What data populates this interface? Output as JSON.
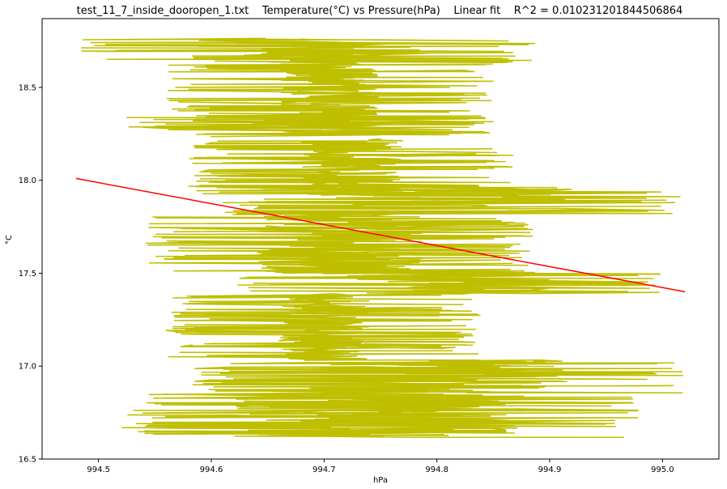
{
  "chart_data": {
    "type": "line",
    "title": "test_11_7_inside_dooropen_1.txt    Temperature(°C) vs Pressure(hPa)    Linear fit    R^2 = 0.010231201844506864",
    "xlabel": "hPa",
    "ylabel": "°C",
    "xlim": [
      994.45,
      995.05
    ],
    "ylim": [
      16.5,
      18.87
    ],
    "xticks": [
      994.5,
      994.6,
      994.7,
      994.8,
      994.9,
      995.0
    ],
    "xtick_labels": [
      "994.5",
      "994.6",
      "994.7",
      "994.8",
      "994.9",
      "995.0"
    ],
    "yticks": [
      16.5,
      17.0,
      17.5,
      18.0,
      18.5
    ],
    "ytick_labels": [
      "16.5",
      "17.0",
      "17.5",
      "18.0",
      "18.5"
    ],
    "grid": false,
    "legend": "none",
    "series": [
      {
        "color": "#bfbf00",
        "bands": [
          {
            "y": [
              18.63,
              18.76
            ],
            "x": [
              994.48,
              994.89
            ]
          },
          {
            "y": [
              18.24,
              18.63
            ],
            "x": [
              994.56,
              994.85
            ]
          },
          {
            "y": [
              18.28,
              18.34
            ],
            "x": [
              994.52,
              994.86
            ]
          },
          {
            "y": [
              17.92,
              18.22
            ],
            "x": [
              994.58,
              994.87
            ]
          },
          {
            "y": [
              17.82,
              17.96
            ],
            "x": [
              994.61,
              995.02
            ]
          },
          {
            "y": [
              17.5,
              17.82
            ],
            "x": [
              994.54,
              994.89
            ]
          },
          {
            "y": [
              17.39,
              17.5
            ],
            "x": [
              994.62,
              995.0
            ]
          },
          {
            "y": [
              17.03,
              17.39
            ],
            "x": [
              994.56,
              994.84
            ]
          },
          {
            "y": [
              16.86,
              17.03
            ],
            "x": [
              994.58,
              995.02
            ]
          },
          {
            "y": [
              16.62,
              16.86
            ],
            "x": [
              994.52,
              994.98
            ]
          }
        ]
      },
      {
        "color": "#ff0000",
        "x": [
          994.48,
          995.02
        ],
        "y": [
          18.01,
          17.4
        ]
      }
    ]
  }
}
